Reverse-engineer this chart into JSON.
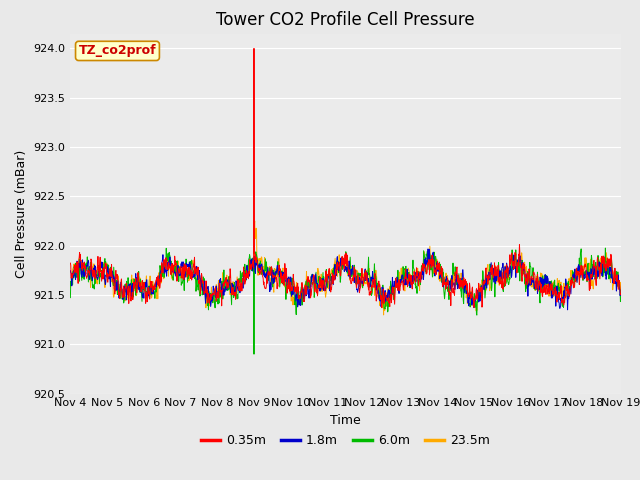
{
  "title": "Tower CO2 Profile Cell Pressure",
  "ylabel": "Cell Pressure (mBar)",
  "xlabel": "Time",
  "annotation": "TZ_co2prof",
  "ylim": [
    920.5,
    924.15
  ],
  "yticks": [
    920.5,
    921.0,
    921.5,
    922.0,
    922.5,
    923.0,
    923.5,
    924.0
  ],
  "series_colors": [
    "#ff0000",
    "#0000cc",
    "#00bb00",
    "#ffaa00"
  ],
  "series_labels": [
    "0.35m",
    "1.8m",
    "6.0m",
    "23.5m"
  ],
  "background_color": "#e9e9e9",
  "plot_bg_color": "#ebebeb",
  "n_points": 1500,
  "base_pressure": 921.65,
  "spike_day": 5.0,
  "spike_high_red": 924.0,
  "spike_low_green": 920.9,
  "spike_high_orange": 922.52,
  "xtick_labels": [
    "Nov 4",
    "Nov 5",
    "Nov 6",
    "Nov 7",
    "Nov 8",
    "Nov 9",
    "Nov 10",
    "Nov 11",
    "Nov 12",
    "Nov 13",
    "Nov 14",
    "Nov 15",
    "Nov 16",
    "Nov 17",
    "Nov 18",
    "Nov 19"
  ],
  "title_fontsize": 12,
  "label_fontsize": 9,
  "tick_fontsize": 8,
  "legend_fontsize": 9,
  "annotation_fontsize": 9,
  "linewidth": 0.7,
  "grid_color": "#ffffff",
  "grid_linewidth": 0.8
}
